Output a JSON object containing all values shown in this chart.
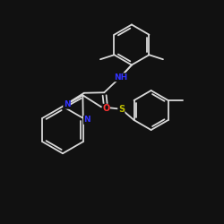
{
  "background": "#111111",
  "bond_color": "#d8d8d8",
  "atom_colors": {
    "N": "#3333ff",
    "O": "#ff3333",
    "S": "#bbbb00",
    "C": "#d8d8d8"
  },
  "figsize": [
    2.5,
    2.5
  ],
  "dpi": 100,
  "xlim": [
    0,
    10
  ],
  "ylim": [
    0,
    10
  ]
}
